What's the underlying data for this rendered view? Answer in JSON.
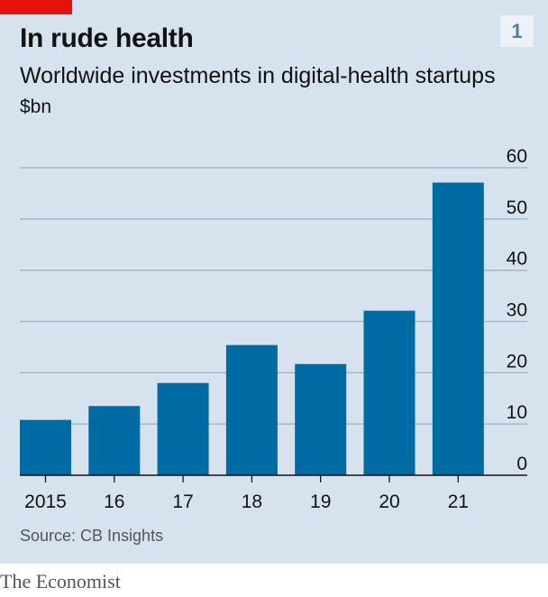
{
  "header": {
    "title": "In rude health",
    "subtitle": "Worldwide investments in digital-health startups",
    "unit": "$bn",
    "badge": "1"
  },
  "footer": {
    "source": "Source: CB Insights",
    "brand": "The Economist"
  },
  "colors": {
    "background": "#d6e3ee",
    "bar": "#006ba2",
    "accent": "#e3120b",
    "gridline": "#9fb3c4"
  },
  "chart_data": {
    "type": "bar",
    "title": "In rude health",
    "subtitle": "Worldwide investments in digital-health startups",
    "xlabel": "",
    "ylabel": "$bn",
    "categories": [
      "2015",
      "16",
      "17",
      "18",
      "19",
      "20",
      "21"
    ],
    "values": [
      10.8,
      13.5,
      18.0,
      25.4,
      21.7,
      32.1,
      57.1
    ],
    "ylim": [
      0,
      60
    ],
    "yticks": [
      0,
      10,
      20,
      30,
      40,
      50,
      60
    ],
    "grid": true,
    "y_axis_side": "right",
    "legend": "none"
  }
}
